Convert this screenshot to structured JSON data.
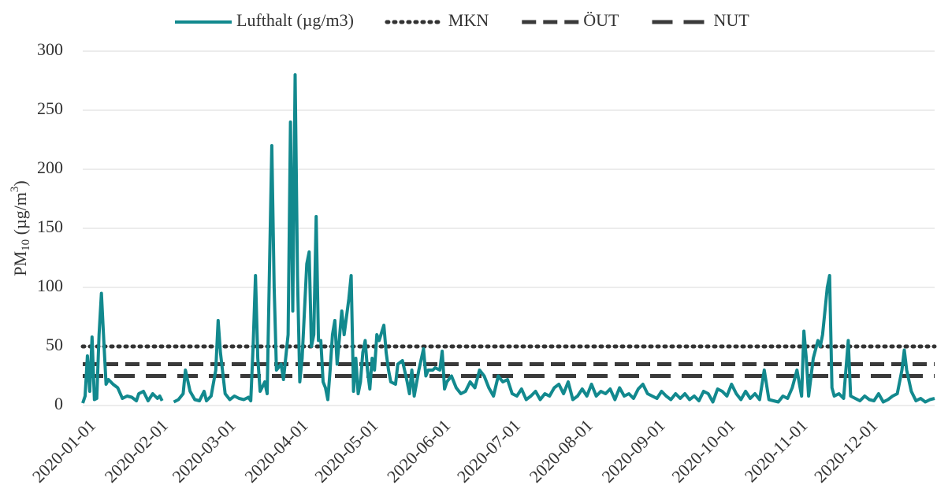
{
  "chart_data": {
    "type": "line",
    "ylabel_parts": [
      "PM",
      "10",
      " (µg/m",
      "3",
      ")"
    ],
    "xlim": [
      "2020-01-01",
      "2020-12-31"
    ],
    "xticks": [
      "2020-01-01",
      "2020-02-01",
      "2020-03-01",
      "2020-04-01",
      "2020-05-01",
      "2020-06-01",
      "2020-07-01",
      "2020-08-01",
      "2020-09-01",
      "2020-10-01",
      "2020-11-01",
      "2020-12-01"
    ],
    "ylim": [
      0,
      300
    ],
    "yticks": [
      0,
      50,
      100,
      150,
      200,
      250,
      300
    ],
    "grid": true,
    "legend": "top",
    "x": [
      "2020-01-01",
      "2020-01-02",
      "2020-01-03",
      "2020-01-04",
      "2020-01-05",
      "2020-01-06",
      "2020-01-07",
      "2020-01-08",
      "2020-01-09",
      "2020-01-10",
      "2020-01-11",
      "2020-01-12",
      "2020-01-14",
      "2020-01-16",
      "2020-01-18",
      "2020-01-20",
      "2020-01-22",
      "2020-01-24",
      "2020-01-25",
      "2020-01-27",
      "2020-01-29",
      "2020-01-31",
      "2020-02-02",
      "2020-02-03",
      "2020-02-04",
      "2020-02-05",
      "2020-02-09",
      "2020-02-11",
      "2020-02-13",
      "2020-02-14",
      "2020-02-16",
      "2020-02-18",
      "2020-02-20",
      "2020-02-22",
      "2020-02-23",
      "2020-02-25",
      "2020-02-27",
      "2020-02-28",
      "2020-02-29",
      "2020-03-02",
      "2020-03-04",
      "2020-03-06",
      "2020-03-08",
      "2020-03-10",
      "2020-03-12",
      "2020-03-13",
      "2020-03-14",
      "2020-03-15",
      "2020-03-16",
      "2020-03-17",
      "2020-03-19",
      "2020-03-20",
      "2020-03-22",
      "2020-03-23",
      "2020-03-24",
      "2020-03-26",
      "2020-03-27",
      "2020-03-29",
      "2020-03-30",
      "2020-03-31",
      "2020-04-01",
      "2020-04-02",
      "2020-04-03",
      "2020-04-04",
      "2020-04-06",
      "2020-04-07",
      "2020-04-08",
      "2020-04-09",
      "2020-04-10",
      "2020-04-11",
      "2020-04-12",
      "2020-04-13",
      "2020-04-14",
      "2020-04-15",
      "2020-04-16",
      "2020-04-17",
      "2020-04-18",
      "2020-04-19",
      "2020-04-21",
      "2020-04-22",
      "2020-04-24",
      "2020-04-25",
      "2020-04-26",
      "2020-04-27",
      "2020-04-28",
      "2020-04-29",
      "2020-04-30",
      "2020-05-01",
      "2020-05-02",
      "2020-05-03",
      "2020-05-04",
      "2020-05-05",
      "2020-05-06",
      "2020-05-07",
      "2020-05-09",
      "2020-05-10",
      "2020-05-11",
      "2020-05-12",
      "2020-05-14",
      "2020-05-15",
      "2020-05-17",
      "2020-05-19",
      "2020-05-20",
      "2020-05-21",
      "2020-05-22",
      "2020-05-24",
      "2020-05-26",
      "2020-05-27",
      "2020-05-28",
      "2020-05-30",
      "2020-05-31",
      "2020-06-02",
      "2020-06-03",
      "2020-06-04",
      "2020-06-05",
      "2020-06-07",
      "2020-06-09",
      "2020-06-11",
      "2020-06-13",
      "2020-06-15",
      "2020-06-17",
      "2020-06-19",
      "2020-06-21",
      "2020-06-23",
      "2020-06-25",
      "2020-06-27",
      "2020-06-29",
      "2020-07-01",
      "2020-07-03",
      "2020-07-05",
      "2020-07-07",
      "2020-07-09",
      "2020-07-11",
      "2020-07-13",
      "2020-07-15",
      "2020-07-17",
      "2020-07-19",
      "2020-07-21",
      "2020-07-23",
      "2020-07-25",
      "2020-07-27",
      "2020-07-29",
      "2020-07-31",
      "2020-08-02",
      "2020-08-04",
      "2020-08-06",
      "2020-08-08",
      "2020-08-10",
      "2020-08-12",
      "2020-08-14",
      "2020-08-16",
      "2020-08-18",
      "2020-08-20",
      "2020-08-22",
      "2020-08-24",
      "2020-08-26",
      "2020-08-28",
      "2020-08-30",
      "2020-09-01",
      "2020-09-03",
      "2020-09-05",
      "2020-09-07",
      "2020-09-09",
      "2020-09-11",
      "2020-09-13",
      "2020-09-15",
      "2020-09-17",
      "2020-09-19",
      "2020-09-21",
      "2020-09-23",
      "2020-09-25",
      "2020-09-27",
      "2020-09-29",
      "2020-10-01",
      "2020-10-03",
      "2020-10-05",
      "2020-10-07",
      "2020-10-09",
      "2020-10-11",
      "2020-10-13",
      "2020-10-15",
      "2020-10-17",
      "2020-10-19",
      "2020-10-21",
      "2020-10-23",
      "2020-10-25",
      "2020-10-27",
      "2020-10-29",
      "2020-10-31",
      "2020-11-02",
      "2020-11-04",
      "2020-11-05",
      "2020-11-06",
      "2020-11-07",
      "2020-11-09",
      "2020-11-11",
      "2020-11-12",
      "2020-11-13",
      "2020-11-15",
      "2020-11-16",
      "2020-11-17",
      "2020-11-18",
      "2020-11-20",
      "2020-11-22",
      "2020-11-24",
      "2020-11-25",
      "2020-11-27",
      "2020-11-29",
      "2020-12-01",
      "2020-12-03",
      "2020-12-05",
      "2020-12-07",
      "2020-12-09",
      "2020-12-11",
      "2020-12-13",
      "2020-12-15",
      "2020-12-17",
      "2020-12-18",
      "2020-12-19",
      "2020-12-21",
      "2020-12-23",
      "2020-12-25",
      "2020-12-27",
      "2020-12-29",
      "2020-12-31"
    ],
    "series": [
      {
        "name": "Lufthalt (µg/m3)",
        "color": "#12898e",
        "values": [
          2,
          8,
          42,
          12,
          58,
          5,
          6,
          60,
          95,
          55,
          18,
          22,
          18,
          15,
          6,
          8,
          7,
          4,
          10,
          12,
          4,
          10,
          6,
          8,
          4,
          null,
          3,
          5,
          10,
          30,
          12,
          5,
          4,
          12,
          4,
          8,
          30,
          72,
          45,
          10,
          5,
          8,
          6,
          5,
          7,
          4,
          50,
          110,
          40,
          12,
          20,
          10,
          220,
          100,
          30,
          35,
          22,
          60,
          240,
          80,
          280,
          110,
          20,
          40,
          120,
          130,
          50,
          60,
          160,
          55,
          55,
          20,
          15,
          5,
          30,
          60,
          72,
          35,
          80,
          60,
          90,
          110,
          12,
          40,
          10,
          20,
          45,
          55,
          30,
          14,
          40,
          30,
          60,
          55,
          68,
          45,
          30,
          20,
          18,
          35,
          38,
          20,
          10,
          30,
          8,
          30,
          48,
          25,
          30,
          30,
          32,
          30,
          46,
          14,
          20,
          25,
          15,
          10,
          12,
          20,
          15,
          30,
          25,
          15,
          8,
          25,
          20,
          22,
          10,
          8,
          14,
          5,
          8,
          12,
          5,
          10,
          8,
          15,
          18,
          10,
          20,
          5,
          8,
          14,
          8,
          18,
          8,
          12,
          10,
          14,
          5,
          15,
          8,
          10,
          6,
          14,
          18,
          10,
          8,
          6,
          12,
          8,
          5,
          10,
          6,
          10,
          5,
          8,
          4,
          12,
          10,
          3,
          14,
          12,
          8,
          18,
          10,
          5,
          12,
          6,
          10,
          5,
          30,
          5,
          4,
          3,
          8,
          6,
          15,
          30,
          8,
          63,
          40,
          8,
          40,
          55,
          50,
          60,
          100,
          110,
          15,
          8,
          10,
          6,
          55,
          8,
          6,
          4,
          8,
          5,
          4,
          10,
          3,
          5,
          8,
          10,
          30,
          47,
          30,
          12,
          4,
          6,
          3,
          5,
          6
        ]
      }
    ],
    "reference_lines": [
      {
        "name": "MKN",
        "value": 50,
        "color": "#333333",
        "dash": "dotted"
      },
      {
        "name": "ÖUT",
        "value": 35,
        "color": "#3a3a3a",
        "dash": "dashed"
      },
      {
        "name": "NUT",
        "value": 25,
        "color": "#3a3a3a",
        "dash": "long-dashed"
      }
    ]
  }
}
